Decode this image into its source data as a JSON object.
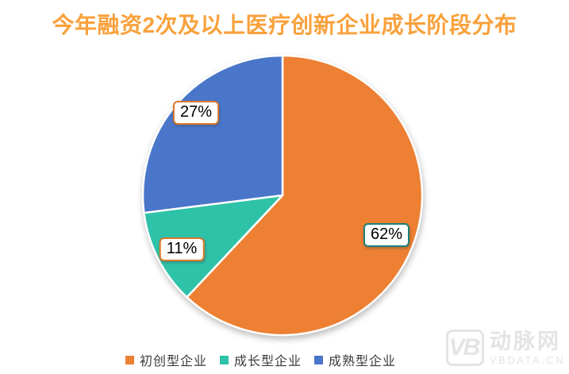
{
  "title": "今年融资2次及以上医疗创新企业成长阶段分布",
  "styles": {
    "title_color": "#F9A13C",
    "slice_orange": "#ED8033",
    "slice_teal": "#2EC2A9",
    "slice_blue": "#4A76C9"
  },
  "chart_data": {
    "type": "pie",
    "title": "今年融资2次及以上医疗创新企业成长阶段分布",
    "categories": [
      "初创型企业",
      "成长型企业",
      "成熟型企业"
    ],
    "values": [
      62,
      11,
      27
    ],
    "unit": "%",
    "colors": [
      "#ED8033",
      "#2EC2A9",
      "#4A76C9"
    ],
    "start_angle_deg": 0,
    "direction": "clockwise",
    "legend_position": "bottom",
    "data_labels_visible": true
  },
  "data_labels": [
    {
      "text": "62%",
      "border_color": "#1A8179"
    },
    {
      "text": "11%",
      "border_color": "#E0782A"
    },
    {
      "text": "27%",
      "border_color": "#E0782A"
    }
  ],
  "legend": {
    "items": [
      {
        "label": "初创型企业",
        "color": "#ED8033"
      },
      {
        "label": "成长型企业",
        "color": "#2EC2A9"
      },
      {
        "label": "成熟型企业",
        "color": "#4A76C9"
      }
    ]
  },
  "watermark": {
    "logo": "VB",
    "name": "动脉网",
    "site": "VBDATA.CN"
  }
}
